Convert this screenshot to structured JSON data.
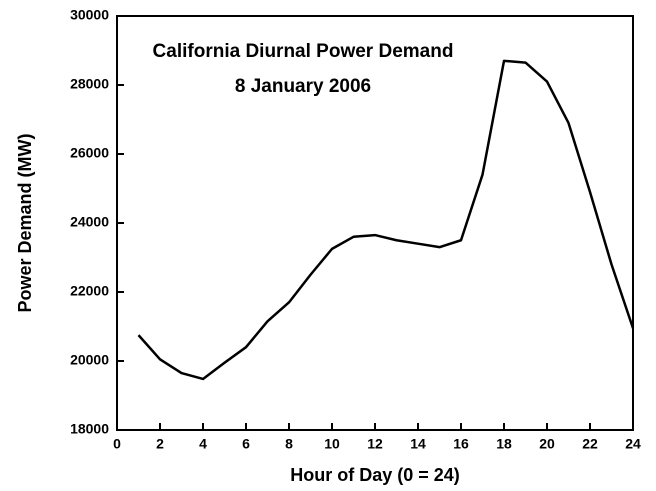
{
  "chart_data": {
    "type": "line",
    "title": "California Diurnal Power Demand",
    "subtitle": "8 January 2006",
    "x_label": "Hour of Day (0 = 24)",
    "y_label": "Power Demand (MW)",
    "x": [
      1,
      2,
      3,
      4,
      5,
      6,
      7,
      8,
      9,
      10,
      11,
      12,
      13,
      14,
      15,
      16,
      17,
      18,
      19,
      20,
      21,
      22,
      23,
      24
    ],
    "series": [
      {
        "name": "Power Demand",
        "color": "#000000",
        "values": [
          20750,
          20050,
          19650,
          19480,
          19950,
          20400,
          21150,
          21700,
          22500,
          23250,
          23600,
          23650,
          23500,
          23400,
          23300,
          23500,
          25400,
          28700,
          28650,
          28100,
          26900,
          24900,
          22800,
          20950
        ]
      }
    ],
    "xlim": [
      0,
      24
    ],
    "xticks": [
      0,
      2,
      4,
      6,
      8,
      10,
      12,
      14,
      16,
      18,
      20,
      22,
      24
    ],
    "ylim": [
      18000,
      30000
    ],
    "yticks": [
      18000,
      20000,
      22000,
      24000,
      26000,
      28000,
      30000
    ],
    "grid": false
  }
}
